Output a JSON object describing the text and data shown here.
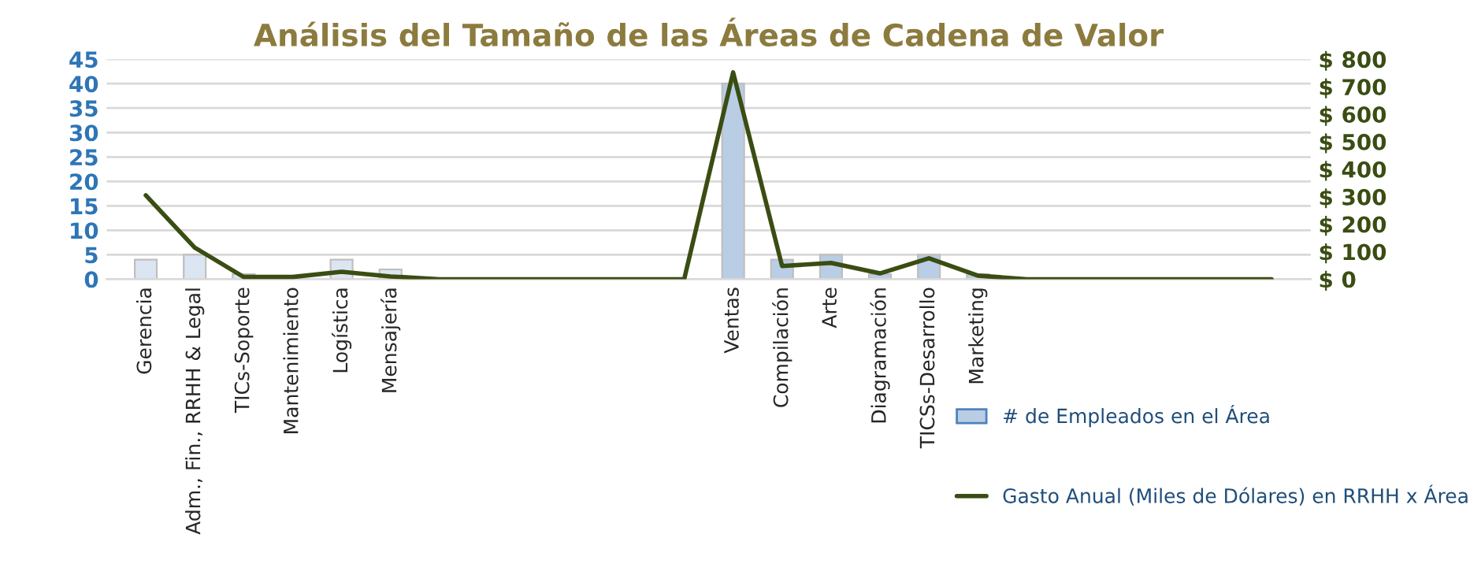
{
  "chart_data": {
    "type": "bar",
    "title": "Análisis del Tamaño de las Áreas de Cadena de Valor",
    "categories": [
      "Gerencia",
      "Adm., Fin., RRHH & Legal",
      "TICs-Soporte",
      "Mantenimiento",
      "Logística",
      "Mensajería",
      null,
      null,
      null,
      null,
      null,
      null,
      "Ventas",
      "Compilación",
      "Arte",
      "Diagramación",
      "TICSs-Desarrollo",
      "Marketing",
      null,
      null,
      null,
      null,
      null,
      null
    ],
    "series": [
      {
        "name": "# de Empleados en el Área",
        "color": "#b9cde5",
        "colors": [
          "#dce6f2",
          "#dce6f2",
          "#dce6f2",
          null,
          "#dce6f2",
          "#dce6f2",
          null,
          null,
          null,
          null,
          null,
          null,
          "#b9cde5",
          "#b9cde5",
          "#b9cde5",
          "#b9cde5",
          "#b9cde5",
          "#b9cde5",
          null,
          null,
          null,
          null,
          null,
          null
        ],
        "values": [
          4,
          5,
          1,
          null,
          4,
          2,
          null,
          null,
          null,
          null,
          null,
          null,
          40,
          4,
          5,
          1,
          5,
          1,
          null,
          null,
          null,
          null,
          null,
          null
        ]
      },
      {
        "name": "Gasto Anual (Miles de Dólares) en RRHH x Área",
        "type": "line",
        "axis": "y2",
        "color": "#3a4d12",
        "values": [
          305,
          115,
          8,
          8,
          27,
          10,
          0,
          0,
          0,
          0,
          0,
          0,
          752,
          48,
          59,
          21,
          76,
          13,
          0,
          0,
          0,
          0,
          0,
          0
        ]
      }
    ],
    "ylim": [
      0,
      45
    ],
    "yticks": [
      0,
      5,
      10,
      15,
      20,
      25,
      30,
      35,
      40,
      45
    ],
    "y2lim": [
      0,
      800
    ],
    "y2ticks": [
      {
        "value": 0,
        "label": "$ 0"
      },
      {
        "value": 100,
        "label": "$ 100"
      },
      {
        "value": 200,
        "label": "$ 200"
      },
      {
        "value": 300,
        "label": "$ 300"
      },
      {
        "value": 400,
        "label": "$ 400"
      },
      {
        "value": 500,
        "label": "$ 500"
      },
      {
        "value": 600,
        "label": "$ 600"
      },
      {
        "value": 700,
        "label": "$ 700"
      },
      {
        "value": 800,
        "label": "$ 800"
      }
    ],
    "grid": "y",
    "legend": "bottom right",
    "marker": "none",
    "line_style": "solid"
  }
}
